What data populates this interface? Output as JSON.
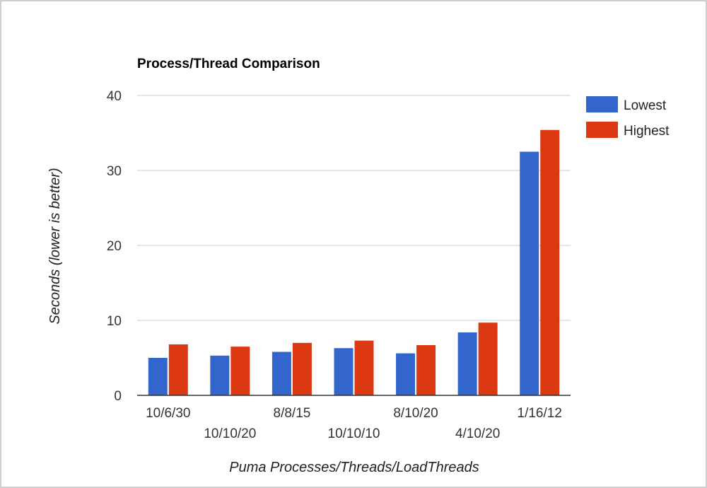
{
  "chart_data": {
    "type": "bar",
    "title": "Process/Thread Comparison",
    "xlabel": "Puma Processes/Threads/LoadThreads",
    "ylabel": "Seconds (lower is better)",
    "categories": [
      "10/6/30",
      "10/10/20",
      "8/8/15",
      "10/10/10",
      "8/10/20",
      "4/10/20",
      "1/16/12"
    ],
    "series": [
      {
        "name": "Lowest",
        "color": "#3366cc",
        "values": [
          5.0,
          5.3,
          5.8,
          6.3,
          5.6,
          8.4,
          32.5
        ]
      },
      {
        "name": "Highest",
        "color": "#dc3912",
        "values": [
          6.8,
          6.5,
          7.0,
          7.3,
          6.7,
          9.7,
          35.4
        ]
      }
    ],
    "ylim": [
      0,
      40
    ],
    "yticks": [
      0,
      10,
      20,
      30,
      40
    ],
    "grid": true,
    "legend": "right"
  }
}
